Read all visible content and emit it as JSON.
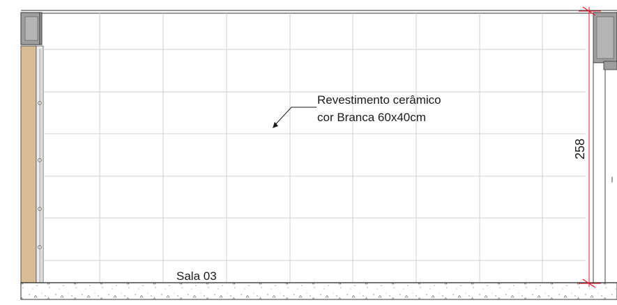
{
  "annotation": {
    "line1": "Revestimento cerâmico",
    "line2": "cor Branca 60x40cm"
  },
  "dimension": {
    "value": "258"
  },
  "room": {
    "name": "Sala 03"
  },
  "colors": {
    "tile_grid": "#cfcfcf",
    "wall_fill": "#d8bc96",
    "concrete_gray": "#9e9e9e",
    "dimension_red": "#e8192c",
    "ink": "#1a1a1a"
  }
}
